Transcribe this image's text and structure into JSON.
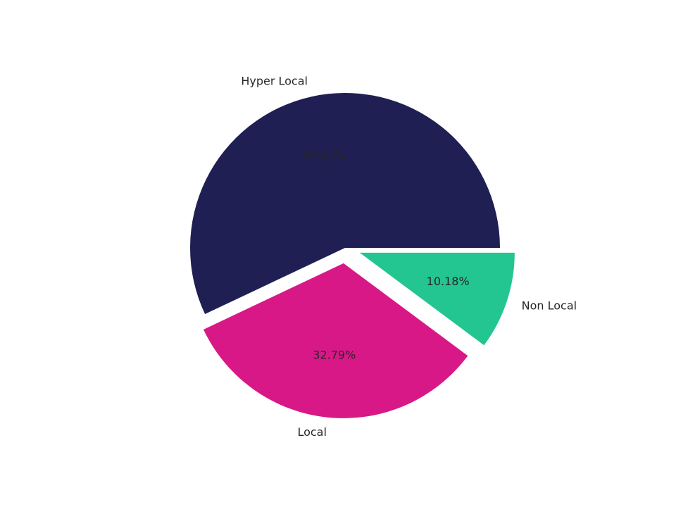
{
  "chart_data": {
    "type": "pie",
    "categories": [
      "Hyper Local",
      "Local",
      "Non Local"
    ],
    "values": [
      57.03,
      32.79,
      10.18
    ],
    "value_labels": [
      "57.03%",
      "32.79%",
      "10.18%"
    ],
    "colors": [
      "#1f1f54",
      "#d81886",
      "#23c591"
    ],
    "explode": [
      0,
      0.1,
      0.1
    ],
    "start_angle": 0
  }
}
